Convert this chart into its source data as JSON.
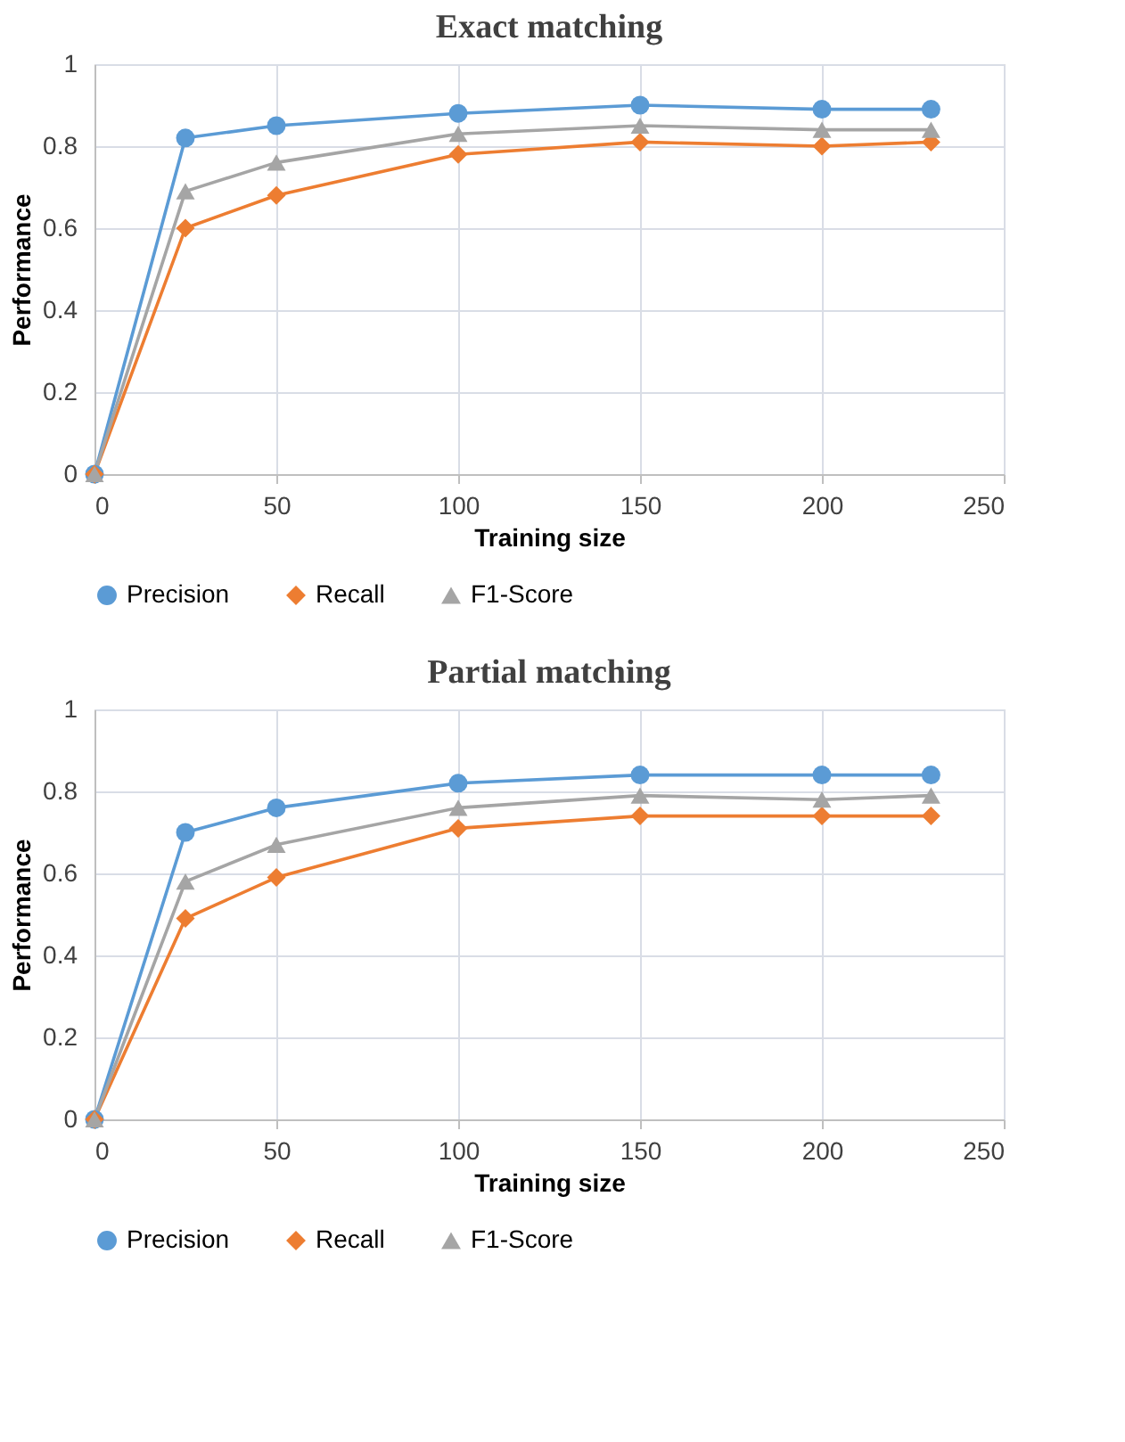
{
  "chart_data": [
    {
      "type": "line",
      "title": "Exact matching",
      "xlabel": "Training size",
      "ylabel": "Performance",
      "x": [
        0,
        25,
        50,
        100,
        150,
        200,
        230
      ],
      "xlim": [
        0,
        250
      ],
      "xticks": [
        0,
        50,
        100,
        150,
        200,
        250
      ],
      "ylim": [
        0,
        1
      ],
      "yticks": [
        0,
        0.2,
        0.4,
        0.6,
        0.8,
        1
      ],
      "grid": true,
      "legend": "bottom",
      "series": [
        {
          "name": "Precision",
          "color": "#5b9bd5",
          "marker": "circle",
          "values": [
            0,
            0.82,
            0.85,
            0.88,
            0.9,
            0.89,
            0.89
          ]
        },
        {
          "name": "Recall",
          "color": "#ed7d31",
          "marker": "diamond",
          "values": [
            0,
            0.6,
            0.68,
            0.78,
            0.81,
            0.8,
            0.81
          ]
        },
        {
          "name": "F1-Score",
          "color": "#a5a5a5",
          "marker": "triangle",
          "values": [
            0,
            0.69,
            0.76,
            0.83,
            0.85,
            0.84,
            0.84
          ]
        }
      ]
    },
    {
      "type": "line",
      "title": "Partial matching",
      "xlabel": "Training size",
      "ylabel": "Performance",
      "x": [
        0,
        25,
        50,
        100,
        150,
        200,
        230
      ],
      "xlim": [
        0,
        250
      ],
      "xticks": [
        0,
        50,
        100,
        150,
        200,
        250
      ],
      "ylim": [
        0,
        1
      ],
      "yticks": [
        0,
        0.2,
        0.4,
        0.6,
        0.8,
        1
      ],
      "grid": true,
      "legend": "bottom",
      "series": [
        {
          "name": "Precision",
          "color": "#5b9bd5",
          "marker": "circle",
          "values": [
            0,
            0.7,
            0.76,
            0.82,
            0.84,
            0.84,
            0.84
          ]
        },
        {
          "name": "Recall",
          "color": "#ed7d31",
          "marker": "diamond",
          "values": [
            0,
            0.49,
            0.59,
            0.71,
            0.74,
            0.74,
            0.74
          ]
        },
        {
          "name": "F1-Score",
          "color": "#a5a5a5",
          "marker": "triangle",
          "values": [
            0,
            0.58,
            0.67,
            0.76,
            0.79,
            0.78,
            0.79
          ]
        }
      ]
    }
  ]
}
